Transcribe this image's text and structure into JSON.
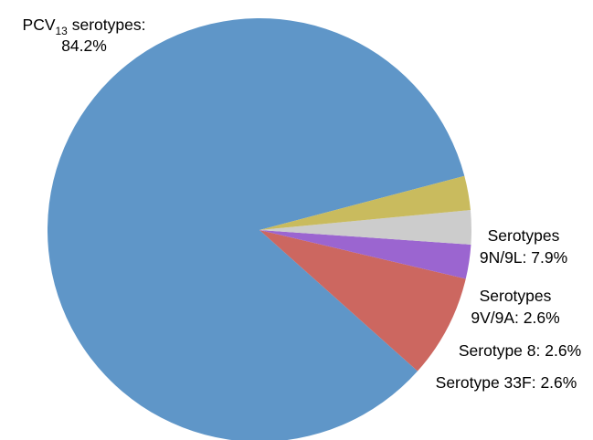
{
  "chart_data": {
    "type": "pie",
    "title": "",
    "slices": [
      {
        "label_lines": [
          "PCV",
          "13",
          " serotypes:",
          "84.2%"
        ],
        "label_text": "PCV13 serotypes: 84.2%",
        "value": 84.2,
        "color": "#5f96c8"
      },
      {
        "label_lines": [
          "Serotypes",
          "9N/9L: 7.9%"
        ],
        "label_text": "Serotypes 9N/9L: 7.9%",
        "value": 7.9,
        "color": "#cc6760"
      },
      {
        "label_lines": [
          "Serotypes",
          "9V/9A: 2.6%"
        ],
        "label_text": "Serotypes 9V/9A: 2.6%",
        "value": 2.6,
        "color": "#9b65d0"
      },
      {
        "label_lines": [
          "Serotype 8: 2.6%"
        ],
        "label_text": "Serotype 8: 2.6%",
        "value": 2.6,
        "color": "#cccccc"
      },
      {
        "label_lines": [
          "Serotype 33F: 2.6%"
        ],
        "label_text": "Serotype 33F: 2.6%",
        "value": 2.6,
        "color": "#c9bb5e"
      }
    ]
  }
}
